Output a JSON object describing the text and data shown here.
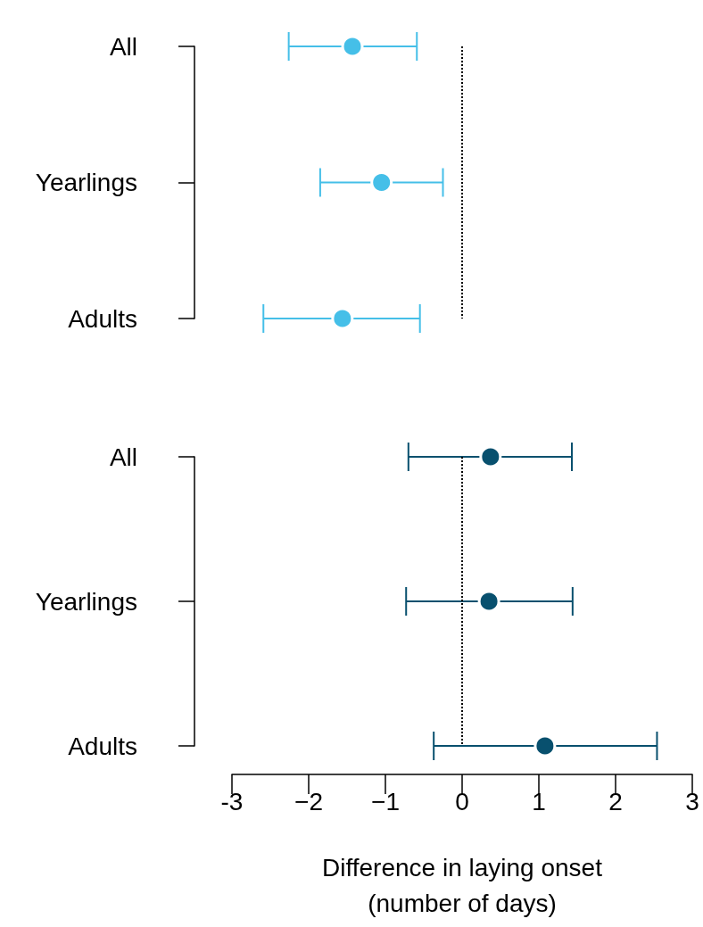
{
  "chart_data": [
    {
      "type": "scatter",
      "orientation": "horizontal",
      "categories": [
        "All",
        "Yearlings",
        "Adults"
      ],
      "values": [
        -1.43,
        -1.05,
        -1.56
      ],
      "errors": [
        [
          -2.26,
          -0.59
        ],
        [
          -1.85,
          -0.25
        ],
        [
          -2.59,
          -0.55
        ]
      ],
      "color": "#45bfe8",
      "marker": "circle",
      "xlim": [
        -3,
        3
      ],
      "tick_labels": "y",
      "ref_lines": [
        {
          "axis": "x",
          "value": 0,
          "line_style": "dotted",
          "color": "#000000"
        }
      ]
    },
    {
      "type": "scatter",
      "orientation": "horizontal",
      "categories": [
        "All",
        "Yearlings",
        "Adults"
      ],
      "values": [
        0.37,
        0.35,
        1.08
      ],
      "errors": [
        [
          -0.7,
          1.43
        ],
        [
          -0.73,
          1.44
        ],
        [
          -0.37,
          2.54
        ]
      ],
      "color": "#08506e",
      "marker": "circle",
      "xlim": [
        -3,
        3
      ],
      "xticks": [
        {
          "value": -3,
          "label": "-3"
        },
        {
          "value": -2,
          "label": "−2"
        },
        {
          "value": -1,
          "label": "−1"
        },
        0,
        1,
        2,
        3
      ],
      "xlabel": "Difference in laying onset\n(number of days)",
      "ref_lines": [
        {
          "axis": "x",
          "value": 0,
          "line_style": "dotted",
          "color": "#000000"
        }
      ]
    }
  ]
}
